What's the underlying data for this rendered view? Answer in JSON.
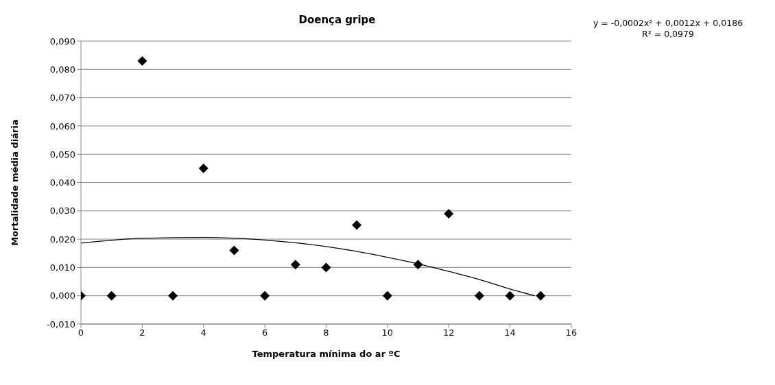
{
  "chart_data": {
    "type": "scatter",
    "title": "Doença gripe",
    "xlabel": "Temperatura mínima do ar ºC",
    "ylabel": "Mortalidade média diária",
    "annotations": [
      "y = -0,0002x² + 0,0012x + 0,0186",
      "R² = 0,0979"
    ],
    "x": [
      0,
      1,
      2,
      3,
      4,
      5,
      6,
      7,
      8,
      9,
      10,
      11,
      12,
      13,
      14,
      15
    ],
    "series": [
      {
        "color": "#000000",
        "marker": "diamond",
        "values": [
          0,
          0,
          0.083,
          0,
          0.045,
          0.016,
          0,
          0.011,
          0.01,
          0.025,
          0,
          0.011,
          0.029,
          0,
          0,
          0
        ]
      },
      {
        "type": "line",
        "color": "#000000",
        "x": [
          0,
          2,
          4,
          6,
          8,
          10,
          11,
          12,
          13,
          14,
          14.8
        ],
        "values": [
          0.0186,
          0.0203,
          0.0206,
          0.0197,
          0.0174,
          0.0136,
          0.0113,
          0.0086,
          0.0057,
          0.0024,
          0
        ]
      }
    ],
    "xlim": [
      0,
      16
    ],
    "xticks": [
      0,
      2,
      4,
      6,
      8,
      10,
      12,
      14,
      16
    ],
    "ylim": [
      -0.01,
      0.09
    ],
    "yticks": [
      {
        "value": -0.01,
        "label": "-0,010"
      },
      {
        "value": 0,
        "label": "0,000"
      },
      {
        "value": 0.01,
        "label": "0,010"
      },
      {
        "value": 0.02,
        "label": "0,020"
      },
      {
        "value": 0.03,
        "label": "0,030"
      },
      {
        "value": 0.04,
        "label": "0,040"
      },
      {
        "value": 0.05,
        "label": "0,050"
      },
      {
        "value": 0.06,
        "label": "0,060"
      },
      {
        "value": 0.07,
        "label": "0,070"
      },
      {
        "value": 0.08,
        "label": "0,080"
      },
      {
        "value": 0.09,
        "label": "0,090"
      }
    ],
    "grid": "y"
  }
}
